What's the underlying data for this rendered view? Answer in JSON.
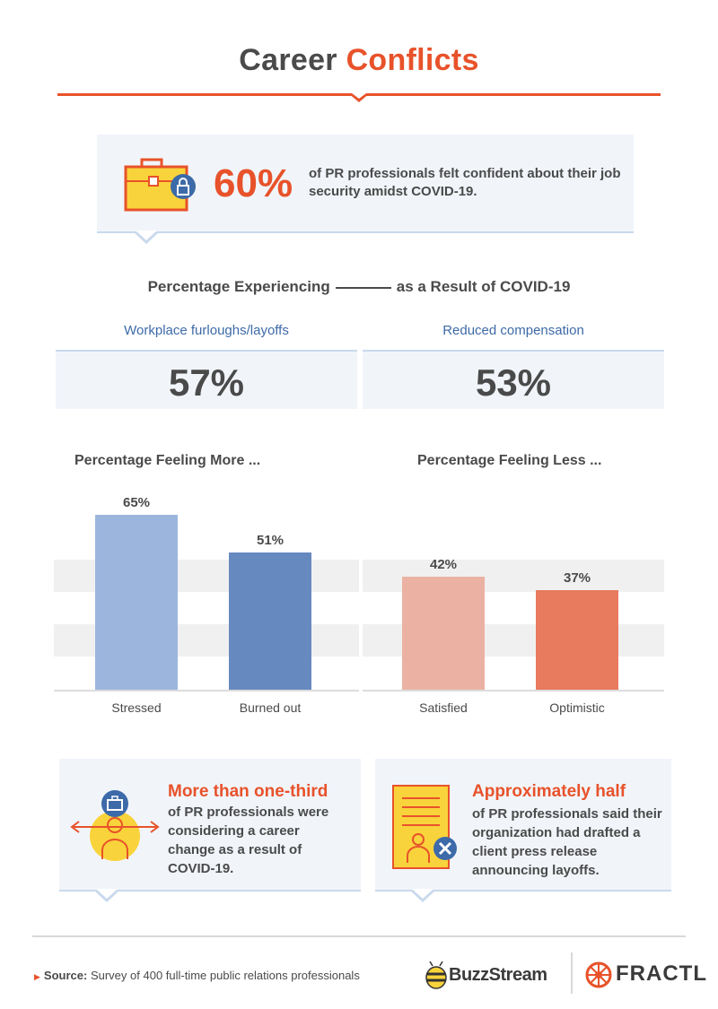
{
  "title": {
    "part1": "Career",
    "part2": "Conflicts"
  },
  "hero": {
    "percent": "60%",
    "text": "of PR professionals felt confident about their job security amidst COVID-19."
  },
  "experiencing": {
    "title_before": "Percentage Experiencing",
    "title_after": "as a Result of COVID-19",
    "stats": [
      {
        "label": "Workplace furloughs/layoffs",
        "value": "57%"
      },
      {
        "label": "Reduced compensation",
        "value": "53%"
      }
    ]
  },
  "chart_data": [
    {
      "type": "bar",
      "title": "Percentage Feeling More ...",
      "categories": [
        "Stressed",
        "Burned out"
      ],
      "values": [
        65,
        51
      ],
      "value_labels": [
        "65%",
        "51%"
      ],
      "colors": [
        "#9cb5dd",
        "#6689bf"
      ],
      "ylim": [
        0,
        80
      ],
      "grid": true
    },
    {
      "type": "bar",
      "title": "Percentage Feeling Less ...",
      "categories": [
        "Satisfied",
        "Optimistic"
      ],
      "values": [
        42,
        37
      ],
      "value_labels": [
        "42%",
        "37%"
      ],
      "colors": [
        "#ebb2a3",
        "#e87a5e"
      ],
      "ylim": [
        0,
        80
      ],
      "grid": true
    }
  ],
  "cards": [
    {
      "head": "More than one-third",
      "text": "of PR professionals were considering a career change as a result of COVID-19."
    },
    {
      "head": "Approximately half",
      "text": "of PR professionals said their organization had drafted a client press release announcing layoffs."
    }
  ],
  "footer": {
    "source_label": "Source:",
    "source_text": "Survey of 400 full-time public relations professionals",
    "brand1": "BuzzStream",
    "brand2": "FRACTL"
  },
  "colors": {
    "accent": "#e8522a",
    "blue": "#3d6aa8",
    "panel": "#f1f5fa"
  }
}
